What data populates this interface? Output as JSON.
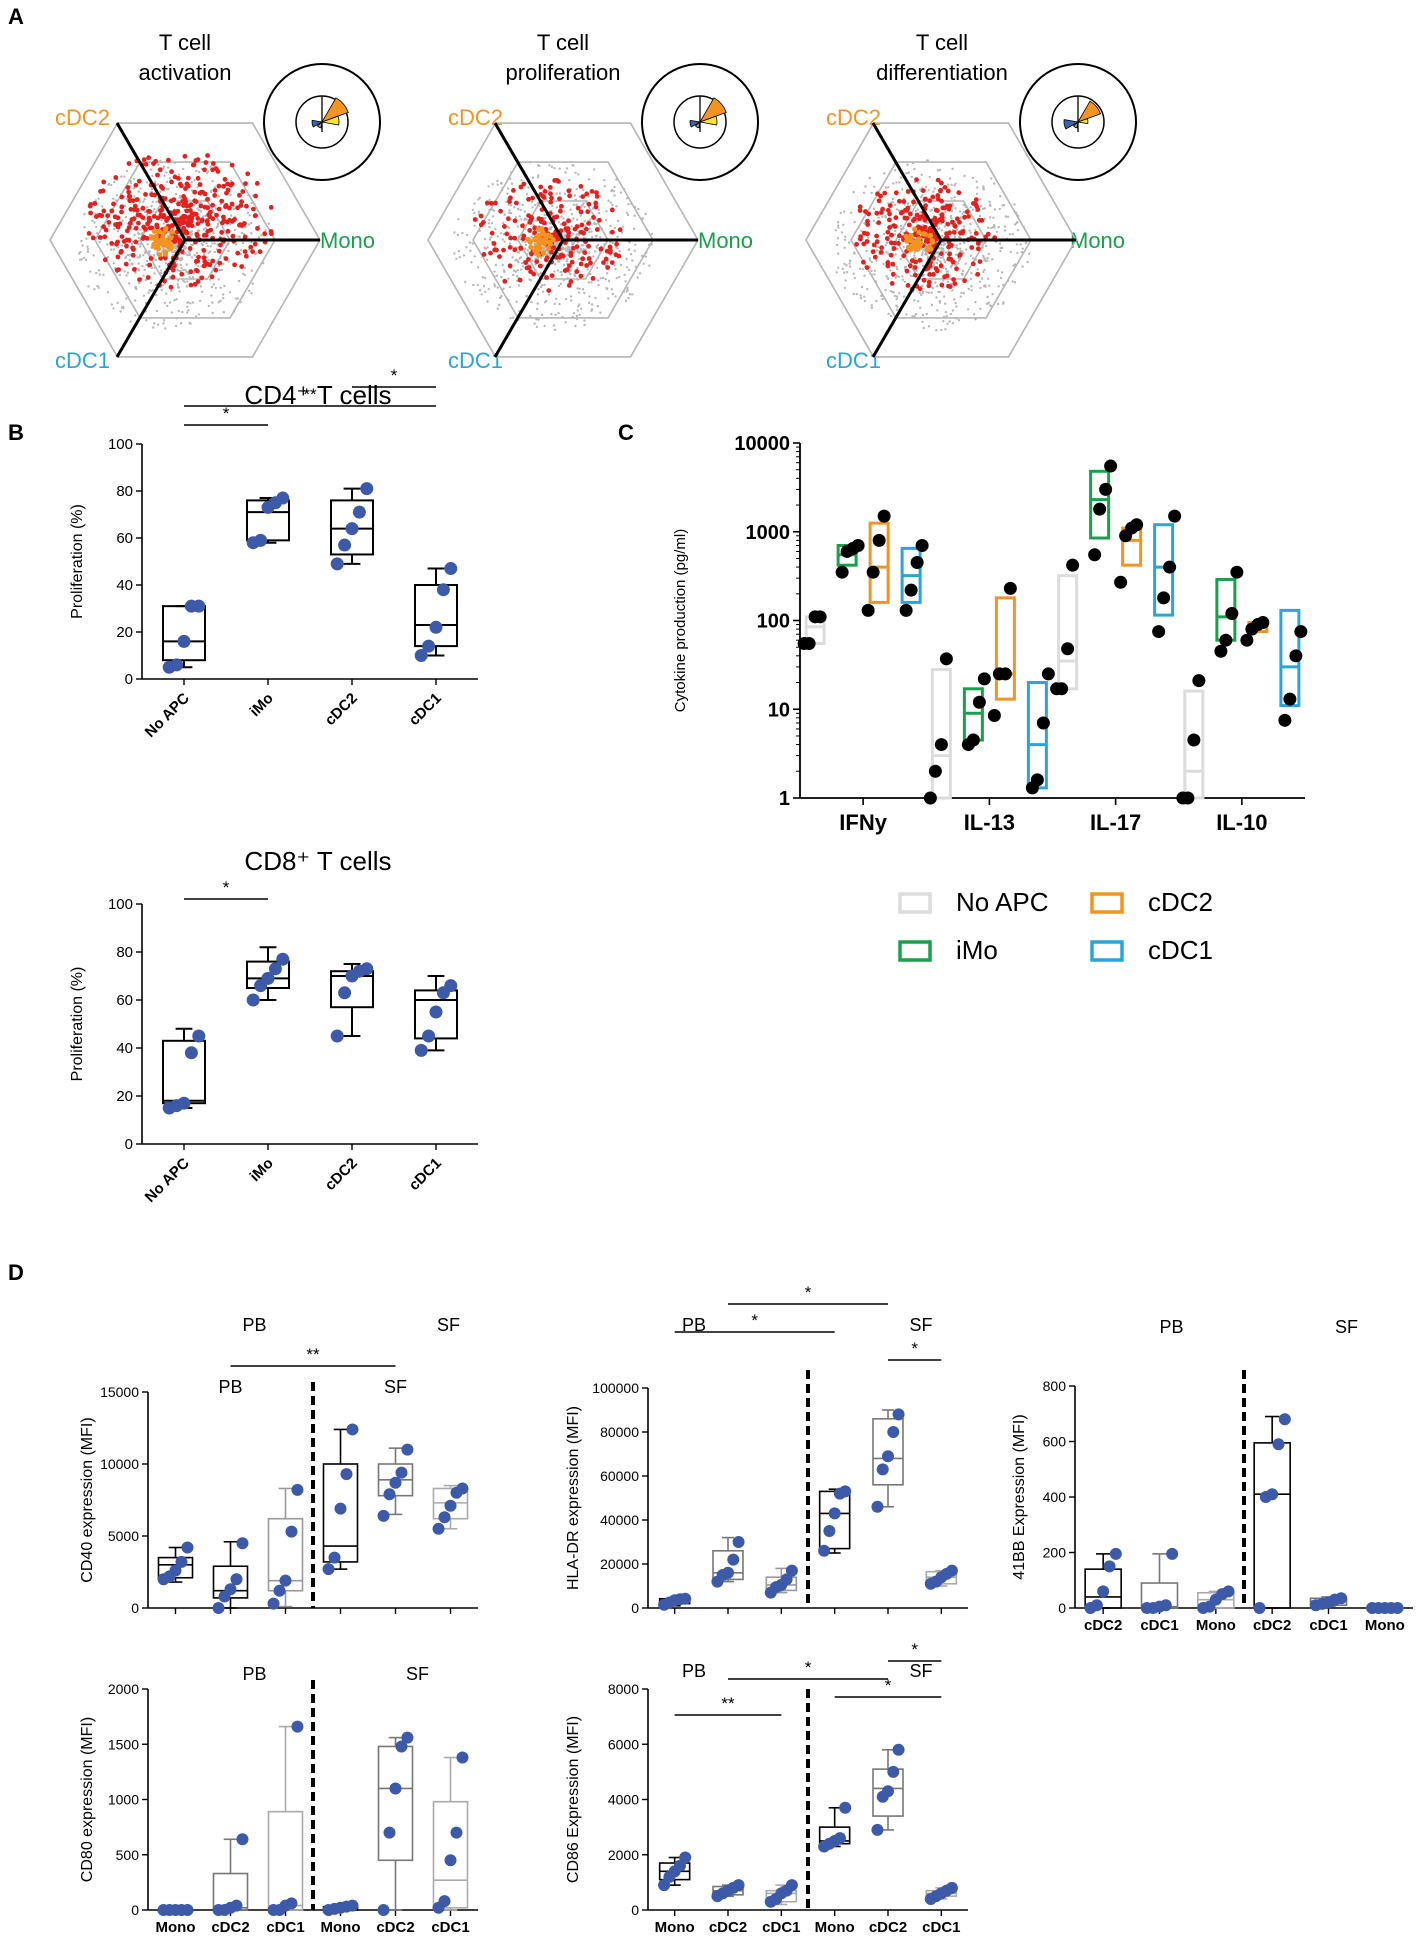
{
  "panel_labels": [
    "A",
    "B",
    "C",
    "D"
  ],
  "colors": {
    "orange": "#f39321",
    "green": "#1aa04c",
    "blue": "#2aa5dc",
    "red": "#e4211e",
    "grey": "#bdbdbd",
    "dot_blue": "#3d5aa8",
    "light_grey": "#dcdcdc",
    "dark_grey": "#777777"
  },
  "panel_a": {
    "corner_labels": {
      "top": "cDC2",
      "right": "Mono",
      "bottom": "cDC1"
    },
    "plots": [
      {
        "title_line1": "T cell",
        "title_line2": "activation"
      },
      {
        "title_line1": "T cell",
        "title_line2": "proliferation"
      },
      {
        "title_line1": "T cell",
        "title_line2": "differentiation"
      }
    ]
  },
  "chart_data": [
    {
      "id": "B_CD4",
      "type": "box",
      "title": "CD4⁺ T cells",
      "ylabel": "Proliferation (%)",
      "ylim": [
        0,
        100
      ],
      "yticks": [
        0,
        20,
        40,
        60,
        80,
        100
      ],
      "categories": [
        "No APC",
        "iMo",
        "cDC2",
        "cDC1"
      ],
      "boxes": [
        {
          "min": 5,
          "q1": 8,
          "median": 16,
          "q3": 31,
          "max": 31,
          "points": [
            5,
            6,
            16,
            31,
            31
          ]
        },
        {
          "min": 58,
          "q1": 59,
          "median": 71,
          "q3": 76,
          "max": 77,
          "points": [
            58,
            59,
            73,
            75,
            77
          ]
        },
        {
          "min": 49,
          "q1": 53,
          "median": 64,
          "q3": 76,
          "max": 81,
          "points": [
            49,
            57,
            64,
            71,
            81
          ]
        },
        {
          "min": 10,
          "q1": 14,
          "median": 23,
          "q3": 40,
          "max": 47,
          "points": [
            10,
            14,
            22,
            38,
            47
          ]
        }
      ],
      "significance": [
        {
          "from": 0,
          "to": 1,
          "label": "*",
          "level": 1
        },
        {
          "from": 0,
          "to": 3,
          "label": "**",
          "level": 2
        },
        {
          "from": 2,
          "to": 3,
          "label": "*",
          "level": 3
        }
      ]
    },
    {
      "id": "B_CD8",
      "type": "box",
      "title": "CD8⁺ T cells",
      "ylabel": "Proliferation (%)",
      "ylim": [
        0,
        100
      ],
      "yticks": [
        0,
        20,
        40,
        60,
        80,
        100
      ],
      "categories": [
        "No APC",
        "iMo",
        "cDC2",
        "cDC1"
      ],
      "boxes": [
        {
          "min": 15,
          "q1": 17,
          "median": 18,
          "q3": 43,
          "max": 48,
          "points": [
            15,
            16,
            17,
            38,
            45
          ]
        },
        {
          "min": 60,
          "q1": 65,
          "median": 69,
          "q3": 76,
          "max": 82,
          "points": [
            60,
            66,
            69,
            73,
            77
          ]
        },
        {
          "min": 45,
          "q1": 57,
          "median": 70,
          "q3": 72,
          "max": 75,
          "points": [
            45,
            63,
            70,
            72,
            73
          ]
        },
        {
          "min": 39,
          "q1": 44,
          "median": 60,
          "q3": 64,
          "max": 70,
          "points": [
            39,
            45,
            55,
            63,
            66
          ]
        }
      ],
      "significance": [
        {
          "from": 0,
          "to": 1,
          "label": "*",
          "level": 1
        }
      ]
    },
    {
      "id": "C",
      "type": "box",
      "scale": "log",
      "ylabel": "Cytokine production (pg/ml)",
      "ylim": [
        1,
        10000
      ],
      "yticks": [
        1,
        10,
        100,
        1000,
        10000
      ],
      "categories": [
        "IFNy",
        "IL-13",
        "IL-17",
        "IL-10"
      ],
      "series": [
        "No APC",
        "iMo",
        "cDC2",
        "cDC1"
      ],
      "legend": [
        {
          "label": "No APC",
          "series": 0
        },
        {
          "label": "cDC2",
          "series": 2
        },
        {
          "label": "iMo",
          "series": 1
        },
        {
          "label": "cDC1",
          "series": 3
        }
      ],
      "groups": [
        [
          {
            "q1": 55,
            "median": 85,
            "q3": 110,
            "points": [
              55,
              55,
              110,
              110
            ]
          },
          {
            "q1": 420,
            "median": 550,
            "q3": 700,
            "points": [
              350,
              600,
              650,
              700
            ]
          },
          {
            "q1": 160,
            "median": 400,
            "q3": 1250,
            "points": [
              130,
              350,
              800,
              1500
            ]
          },
          {
            "q1": 160,
            "median": 320,
            "q3": 650,
            "points": [
              130,
              220,
              450,
              700
            ]
          }
        ],
        [
          {
            "q1": 1,
            "median": 3,
            "q3": 28,
            "points": [
              1,
              2,
              4,
              37
            ]
          },
          {
            "q1": 4.5,
            "median": 9,
            "q3": 17,
            "points": [
              4,
              4.5,
              12,
              22
            ]
          },
          {
            "q1": 13,
            "median": 25,
            "q3": 180,
            "points": [
              8.5,
              25,
              25,
              230
            ]
          },
          {
            "q1": 1.3,
            "median": 4,
            "q3": 20,
            "points": [
              1.3,
              1.6,
              7,
              25
            ]
          }
        ],
        [
          {
            "q1": 17,
            "median": 35,
            "q3": 320,
            "points": [
              17,
              17,
              48,
              420
            ]
          },
          {
            "q1": 850,
            "median": 2300,
            "q3": 4800,
            "points": [
              550,
              1800,
              3000,
              5500
            ]
          },
          {
            "q1": 420,
            "median": 800,
            "q3": 1100,
            "points": [
              270,
              900,
              1100,
              1200
            ]
          },
          {
            "q1": 115,
            "median": 400,
            "q3": 1200,
            "points": [
              75,
              180,
              400,
              1500
            ]
          }
        ],
        [
          {
            "q1": 1,
            "median": 2,
            "q3": 16,
            "points": [
              1,
              1,
              4.5,
              21
            ]
          },
          {
            "q1": 60,
            "median": 110,
            "q3": 290,
            "points": [
              45,
              60,
              120,
              350
            ]
          },
          {
            "q1": 75,
            "median": 85,
            "q3": 95,
            "points": [
              60,
              80,
              90,
              95
            ]
          },
          {
            "q1": 11,
            "median": 30,
            "q3": 130,
            "points": [
              7.5,
              13,
              40,
              75
            ]
          }
        ]
      ]
    },
    {
      "id": "D_CD40",
      "type": "box",
      "ylabel": "CD40 expression (MFI)",
      "ylim": [
        0,
        15000
      ],
      "yticks": [
        0,
        5000,
        10000,
        15000
      ],
      "categories": [
        "",
        "",
        "",
        "",
        "",
        ""
      ],
      "box_colors": [
        "#000000",
        "#000000",
        "#999999",
        "#000000",
        "#777777",
        "#aaaaaa"
      ],
      "boxes": [
        {
          "min": 1800,
          "q1": 2100,
          "median": 3000,
          "q3": 3500,
          "max": 4200,
          "points": [
            2000,
            2200,
            2600,
            3200,
            4200
          ]
        },
        {
          "min": 0,
          "q1": 700,
          "median": 1200,
          "q3": 2900,
          "max": 4600,
          "points": [
            0,
            800,
            1300,
            2000,
            4500
          ]
        },
        {
          "min": 100,
          "q1": 1200,
          "median": 1900,
          "q3": 6200,
          "max": 8300,
          "points": [
            300,
            1200,
            1900,
            5300,
            8200
          ]
        },
        {
          "min": 2700,
          "q1": 3200,
          "median": 4300,
          "q3": 10000,
          "max": 12400,
          "points": [
            2700,
            3500,
            6900,
            9300,
            12400
          ]
        },
        {
          "min": 6500,
          "q1": 7800,
          "median": 8900,
          "q3": 10000,
          "max": 11100,
          "points": [
            6400,
            7900,
            8700,
            9400,
            11000
          ]
        },
        {
          "min": 5500,
          "q1": 6200,
          "median": 7300,
          "q3": 8300,
          "max": 8500,
          "points": [
            5500,
            6300,
            7100,
            8000,
            8300
          ]
        }
      ],
      "groups": [
        "PB",
        "SF"
      ],
      "inner_groups": [
        "PB",
        "SF"
      ],
      "significance": [
        {
          "from": 1,
          "to": 4,
          "label": "**",
          "level": 1
        }
      ]
    },
    {
      "id": "D_HLADR",
      "type": "box",
      "ylabel": "HLA-DR expression (MFI)",
      "ylim": [
        0,
        100000
      ],
      "yticks": [
        0,
        20000,
        40000,
        60000,
        80000,
        100000
      ],
      "categories": [
        "",
        "",
        "",
        "",
        "",
        ""
      ],
      "box_colors": [
        "#000000",
        "#777777",
        "#999999",
        "#000000",
        "#777777",
        "#aaaaaa"
      ],
      "boxes": [
        {
          "min": 1000,
          "q1": 2000,
          "median": 3000,
          "q3": 4200,
          "max": 4500,
          "points": [
            1500,
            2500,
            3500,
            4000,
            4200
          ]
        },
        {
          "min": 12000,
          "q1": 13000,
          "median": 16000,
          "q3": 26000,
          "max": 32000,
          "points": [
            12000,
            15000,
            16000,
            22000,
            30000
          ]
        },
        {
          "min": 7000,
          "q1": 8000,
          "median": 10500,
          "q3": 14000,
          "max": 18000,
          "points": [
            7000,
            9500,
            10500,
            13000,
            17000
          ]
        },
        {
          "min": 25000,
          "q1": 27000,
          "median": 43000,
          "q3": 53000,
          "max": 54000,
          "points": [
            26000,
            35000,
            43000,
            52000,
            53000
          ]
        },
        {
          "min": 46000,
          "q1": 56000,
          "median": 68000,
          "q3": 86000,
          "max": 90000,
          "points": [
            46000,
            63000,
            69000,
            80000,
            88000
          ]
        },
        {
          "min": 10000,
          "q1": 11000,
          "median": 14000,
          "q3": 16500,
          "max": 17000,
          "points": [
            11000,
            12000,
            14000,
            15500,
            17000
          ]
        }
      ],
      "groups": [
        "PB",
        "SF"
      ],
      "significance": [
        {
          "from": 0,
          "to": 3,
          "label": "*",
          "level": 1
        },
        {
          "from": 1,
          "to": 4,
          "label": "*",
          "level": 2
        },
        {
          "from": 4,
          "to": 5,
          "label": "*",
          "level": 0
        }
      ]
    },
    {
      "id": "D_41BB",
      "type": "box",
      "ylabel": "41BB Expression (MFI)",
      "ylim": [
        0,
        800
      ],
      "yticks": [
        0,
        200,
        400,
        600,
        800
      ],
      "categories": [
        "cDC2",
        "cDC1",
        "Mono",
        "cDC2",
        "cDC1",
        "Mono"
      ],
      "box_colors": [
        "#000000",
        "#777777",
        "#aaaaaa",
        "#000000",
        "#777777",
        "#aaaaaa"
      ],
      "boxes": [
        {
          "min": 0,
          "q1": 0,
          "median": 40,
          "q3": 140,
          "max": 195,
          "points": [
            0,
            10,
            60,
            150,
            195
          ]
        },
        {
          "min": 0,
          "q1": 0,
          "median": 5,
          "q3": 90,
          "max": 195,
          "points": [
            0,
            0,
            5,
            10,
            195
          ]
        },
        {
          "min": 0,
          "q1": 0,
          "median": 30,
          "q3": 55,
          "max": 60,
          "points": [
            0,
            5,
            30,
            50,
            60
          ]
        },
        {
          "min": 0,
          "q1": 0,
          "median": 410,
          "q3": 595,
          "max": 690,
          "points": [
            0,
            400,
            410,
            590,
            680
          ]
        },
        {
          "min": 5,
          "q1": 10,
          "median": 25,
          "q3": 35,
          "max": 40,
          "points": [
            10,
            15,
            20,
            30,
            35
          ]
        },
        {
          "min": 0,
          "q1": 0,
          "median": 0,
          "q3": 0,
          "max": 0,
          "points": [
            0,
            0,
            0,
            0,
            0
          ]
        }
      ],
      "groups": [
        "PB",
        "SF"
      ],
      "significance": []
    },
    {
      "id": "D_CD80",
      "type": "box",
      "ylabel": "CD80 expression (MFI)",
      "ylim": [
        0,
        2000
      ],
      "yticks": [
        0,
        500,
        1000,
        1500,
        2000
      ],
      "categories": [
        "Mono",
        "cDC2",
        "cDC1",
        "Mono",
        "cDC2",
        "cDC1"
      ],
      "box_colors": [
        "#000000",
        "#777777",
        "#aaaaaa",
        "#000000",
        "#777777",
        "#aaaaaa"
      ],
      "boxes": [
        {
          "min": 0,
          "q1": 0,
          "median": 0,
          "q3": 0,
          "max": 0,
          "points": [
            0,
            0,
            0,
            0,
            0
          ]
        },
        {
          "min": 0,
          "q1": 0,
          "median": 20,
          "q3": 330,
          "max": 640,
          "points": [
            0,
            0,
            20,
            40,
            640
          ]
        },
        {
          "min": 0,
          "q1": 0,
          "median": 40,
          "q3": 890,
          "max": 1660,
          "points": [
            0,
            0,
            40,
            60,
            1660
          ]
        },
        {
          "min": 0,
          "q1": 0,
          "median": 20,
          "q3": 30,
          "max": 40,
          "points": [
            0,
            10,
            20,
            30,
            40
          ]
        },
        {
          "min": 0,
          "q1": 450,
          "median": 1100,
          "q3": 1480,
          "max": 1560,
          "points": [
            0,
            700,
            1100,
            1480,
            1560
          ]
        },
        {
          "min": 0,
          "q1": 20,
          "median": 270,
          "q3": 980,
          "max": 1380,
          "points": [
            20,
            80,
            450,
            700,
            1380
          ]
        }
      ],
      "groups": [
        "PB",
        "SF"
      ],
      "significance": []
    },
    {
      "id": "D_CD86",
      "type": "box",
      "ylabel": "CD86 Expression (MFI)",
      "ylim": [
        0,
        8000
      ],
      "yticks": [
        0,
        2000,
        4000,
        6000,
        8000
      ],
      "categories": [
        "Mono",
        "cDC2",
        "cDC1",
        "Mono",
        "cDC2",
        "cDC1"
      ],
      "box_colors": [
        "#000000",
        "#777777",
        "#aaaaaa",
        "#000000",
        "#777777",
        "#aaaaaa"
      ],
      "boxes": [
        {
          "min": 900,
          "q1": 1100,
          "median": 1400,
          "q3": 1700,
          "max": 1900,
          "points": [
            900,
            1200,
            1400,
            1600,
            1900
          ]
        },
        {
          "min": 500,
          "q1": 550,
          "median": 700,
          "q3": 850,
          "max": 900,
          "points": [
            500,
            600,
            700,
            800,
            900
          ]
        },
        {
          "min": 200,
          "q1": 300,
          "median": 600,
          "q3": 700,
          "max": 900,
          "points": [
            300,
            400,
            600,
            700,
            900
          ]
        },
        {
          "min": 2300,
          "q1": 2400,
          "median": 2500,
          "q3": 3000,
          "max": 3700,
          "points": [
            2300,
            2400,
            2500,
            2600,
            3700
          ]
        },
        {
          "min": 2900,
          "q1": 3400,
          "median": 4400,
          "q3": 5100,
          "max": 5800,
          "points": [
            2900,
            4100,
            4300,
            5000,
            5800
          ]
        },
        {
          "min": 400,
          "q1": 500,
          "median": 600,
          "q3": 700,
          "max": 800,
          "points": [
            400,
            500,
            600,
            700,
            800
          ]
        }
      ],
      "groups": [
        "PB",
        "SF"
      ],
      "significance": [
        {
          "from": 0,
          "to": 2,
          "label": "**",
          "level": 1
        },
        {
          "from": 1,
          "to": 4,
          "label": "*",
          "level": 3
        },
        {
          "from": 3,
          "to": 5,
          "label": "*",
          "level": 2
        },
        {
          "from": 4,
          "to": 5,
          "label": "*",
          "level": 4
        }
      ]
    }
  ]
}
